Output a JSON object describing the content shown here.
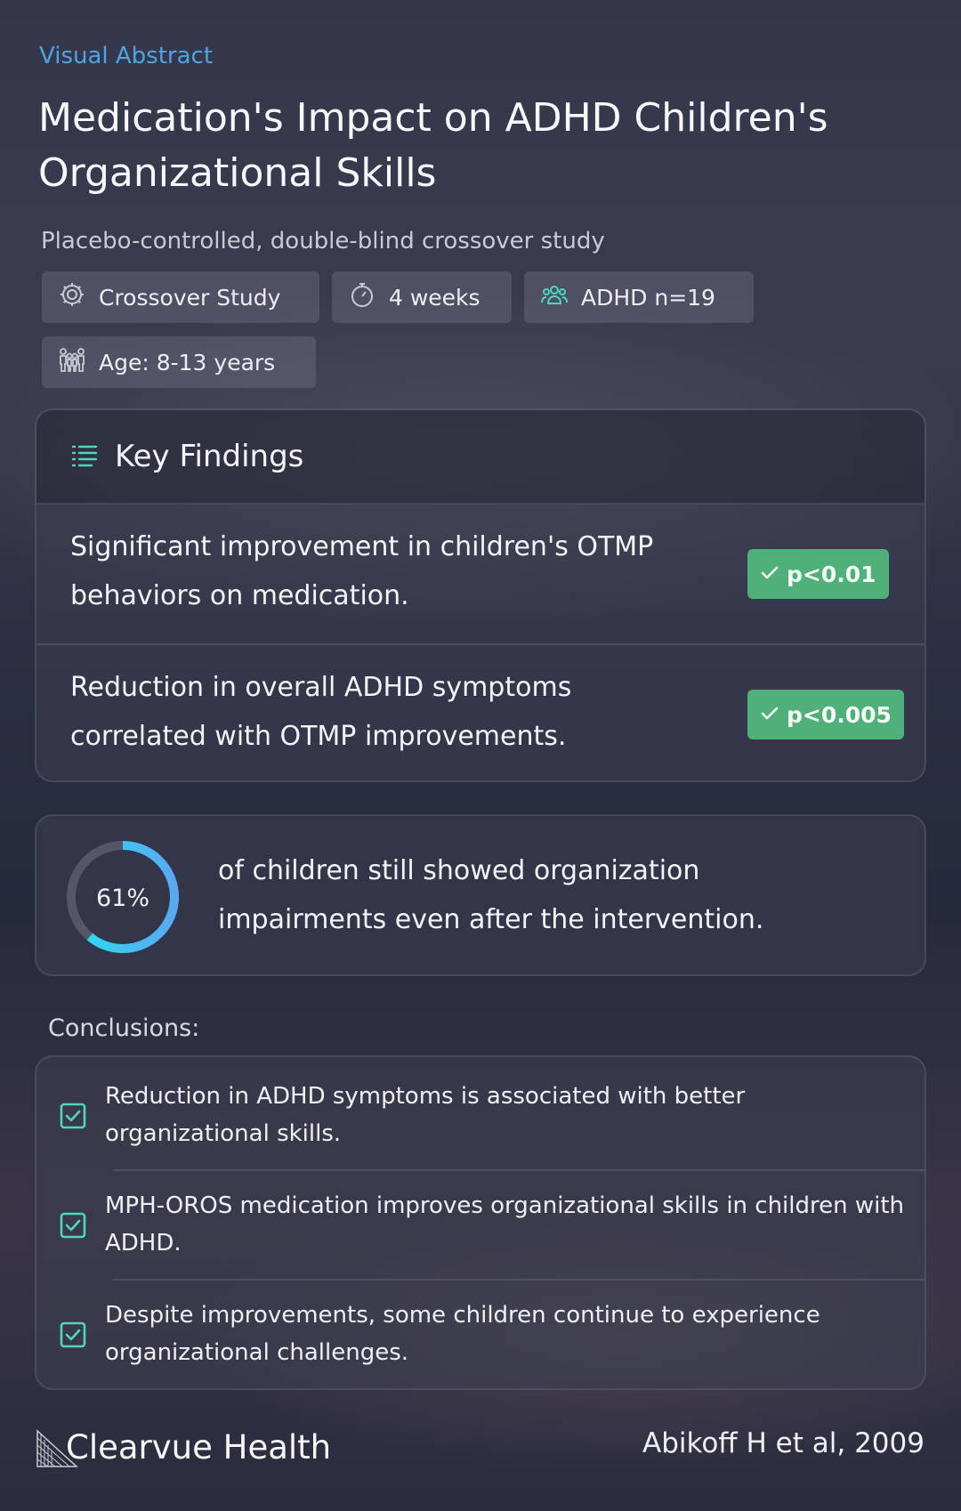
{
  "header": {
    "kicker": "Visual Abstract",
    "title": "Medication's Impact on ADHD Children's Organizational Skills",
    "subtitle": "Placebo-controlled, double-blind crossover study"
  },
  "chips": [
    {
      "icon": "gear-icon",
      "label": "Crossover Study"
    },
    {
      "icon": "stopwatch-icon",
      "label": "4 weeks"
    },
    {
      "icon": "users-icon",
      "label": "ADHD n=19"
    },
    {
      "icon": "family-icon",
      "label": "Age: 8-13 years"
    }
  ],
  "key_findings": {
    "title": "Key Findings",
    "items": [
      {
        "text": "Significant improvement in children's OTMP behaviors on medication.",
        "badge": "p<0.01"
      },
      {
        "text": "Reduction in overall ADHD symptoms correlated with OTMP improvements.",
        "badge": "p<0.005"
      }
    ]
  },
  "stat": {
    "value_label": "61%",
    "fraction": 0.61,
    "text": "of children still showed organization impairments even after the intervention."
  },
  "conclusions": {
    "label": "Conclusions:",
    "items": [
      "Reduction in ADHD symptoms is associated with better organizational skills.",
      "MPH-OROS medication improves organizational skills in children with ADHD.",
      "Despite improvements, some children continue to experience organizational challenges."
    ]
  },
  "footer": {
    "brand": "Clearvue Health",
    "citation": "Abikoff H et al, 2009"
  },
  "colors": {
    "kicker": "#4ea3e0",
    "badge": "#4fb07a",
    "accent_icon": "#4fd6c3",
    "ring_start": "#27e0f0",
    "ring_end": "#5aa8f2"
  }
}
